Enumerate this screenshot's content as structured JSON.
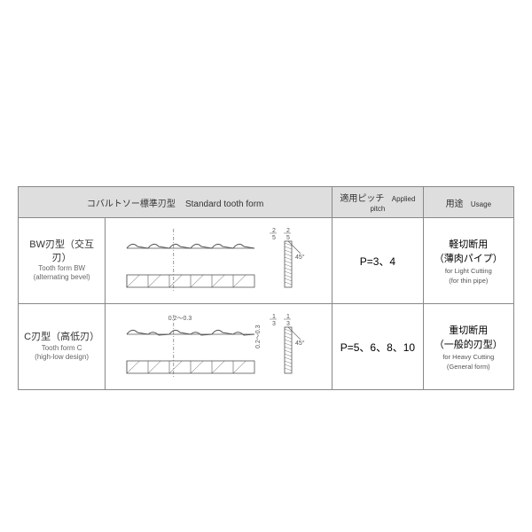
{
  "header": {
    "form_jp": "コバルトソー標準刃型",
    "form_en": "Standard tooth form",
    "pitch_jp": "適用ピッチ",
    "pitch_en": "Applied pitch",
    "usage_jp": "用途",
    "usage_en": "Usage"
  },
  "rows": [
    {
      "label_jp": "BW刃型（交互刃）",
      "label_en1": "Tooth form BW",
      "label_en2": "(alternating bevel)",
      "pitch": "P=3、4",
      "usage_jp1": "軽切断用",
      "usage_jp2": "（薄肉パイプ）",
      "usage_en1": "for Light Cutting",
      "usage_en2": "(for thin pipe)",
      "diagram": {
        "type": "tooth-profile",
        "teeth": 6,
        "frac_top": "2",
        "frac_bot": "5",
        "angle": "45°",
        "stroke": "#555",
        "high_low": false
      }
    },
    {
      "label_jp": "C刃型（高低刃）",
      "label_en1": "Tooth form C",
      "label_en2": "(high-low design)",
      "pitch": "P=5、6、8、10",
      "usage_jp1": "重切断用",
      "usage_jp2": "（一般的刃型）",
      "usage_en1": "for Heavy Cutting",
      "usage_en2": "(General form)",
      "diagram": {
        "type": "tooth-profile",
        "teeth": 6,
        "frac_top": "1",
        "frac_bot": "3",
        "angle": "45°",
        "stroke": "#555",
        "high_low": true,
        "gap_label": "0.2～0.3"
      }
    }
  ]
}
